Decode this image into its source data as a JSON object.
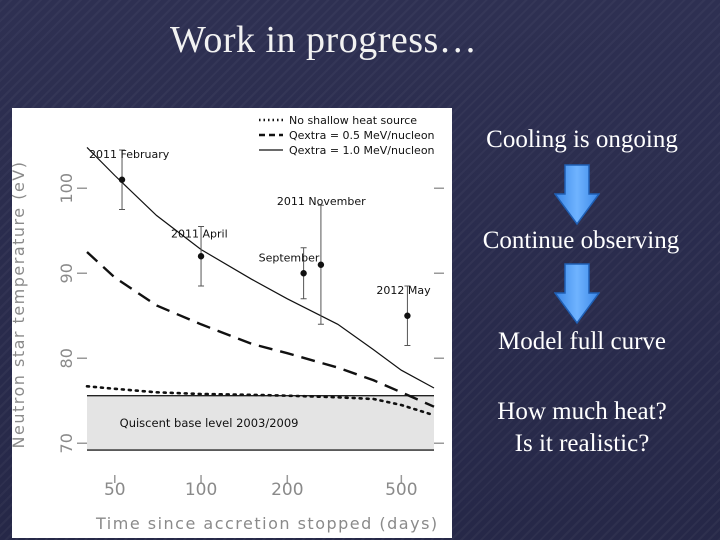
{
  "slide": {
    "title": "Work in progress…",
    "steps": [
      "Cooling is ongoing",
      "Continue observing",
      "Model full curve",
      "How much heat?\nIs it realistic?"
    ]
  },
  "chart_data": {
    "type": "line",
    "xlabel": "Time since accretion stopped (days)",
    "ylabel": "Neutron star temperature (eV)",
    "x_scale": "log",
    "xlim": [
      40,
      650
    ],
    "ylim": [
      66.5,
      108.5
    ],
    "x_ticks": [
      50,
      100,
      200,
      500
    ],
    "y_ticks": [
      70,
      80,
      90,
      100
    ],
    "legend_position": "top-right",
    "base_level": {
      "label": "Quiscent base level 2003/2009",
      "range": [
        69.2,
        75.6
      ],
      "lines": [
        69.2,
        75.6
      ]
    },
    "series": [
      {
        "name": "No shallow heat source",
        "style": "dotted",
        "x": [
          40,
          50,
          70,
          100,
          150,
          200,
          300,
          400,
          500,
          650
        ],
        "y": [
          76.7,
          76.4,
          76.0,
          75.8,
          75.7,
          75.6,
          75.4,
          75.2,
          74.5,
          73.3
        ]
      },
      {
        "name": "Qextra = 0.5 MeV/nucleon",
        "style": "dashed",
        "x": [
          40,
          50,
          70,
          100,
          150,
          200,
          300,
          400,
          500,
          650
        ],
        "y": [
          92.5,
          89.5,
          86.2,
          84.0,
          81.7,
          80.6,
          78.9,
          77.4,
          76.0,
          74.3
        ]
      },
      {
        "name": "Qextra = 1.0 MeV/nucleon",
        "style": "solid",
        "x": [
          40,
          50,
          70,
          100,
          150,
          200,
          300,
          400,
          500,
          650
        ],
        "y": [
          104.8,
          101.5,
          96.8,
          92.8,
          89.3,
          87.0,
          84.0,
          81.0,
          78.6,
          76.5
        ]
      }
    ],
    "observations": [
      {
        "label": "2011 February",
        "x": 53,
        "y": 101.0,
        "err": 3.5
      },
      {
        "label": "2011 April",
        "x": 100,
        "y": 92.0,
        "err": 3.5
      },
      {
        "label": "September",
        "x": 228,
        "y": 90.0,
        "err": 3.0
      },
      {
        "label": "2011 November",
        "x": 262,
        "y": 91.0,
        "err": 7.0
      },
      {
        "label": "2012 May",
        "x": 525,
        "y": 85.0,
        "err": 3.5
      }
    ]
  }
}
